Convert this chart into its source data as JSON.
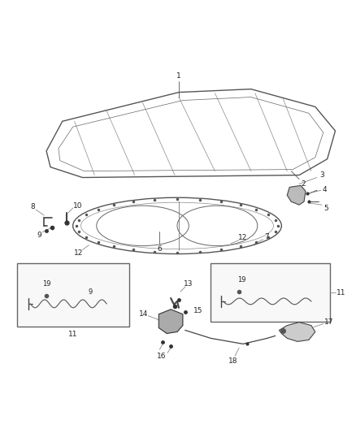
{
  "background_color": "#ffffff",
  "fig_width": 4.38,
  "fig_height": 5.33,
  "dpi": 100,
  "line_color": "#444444",
  "text_color": "#222222",
  "label_fontsize": 6.5
}
